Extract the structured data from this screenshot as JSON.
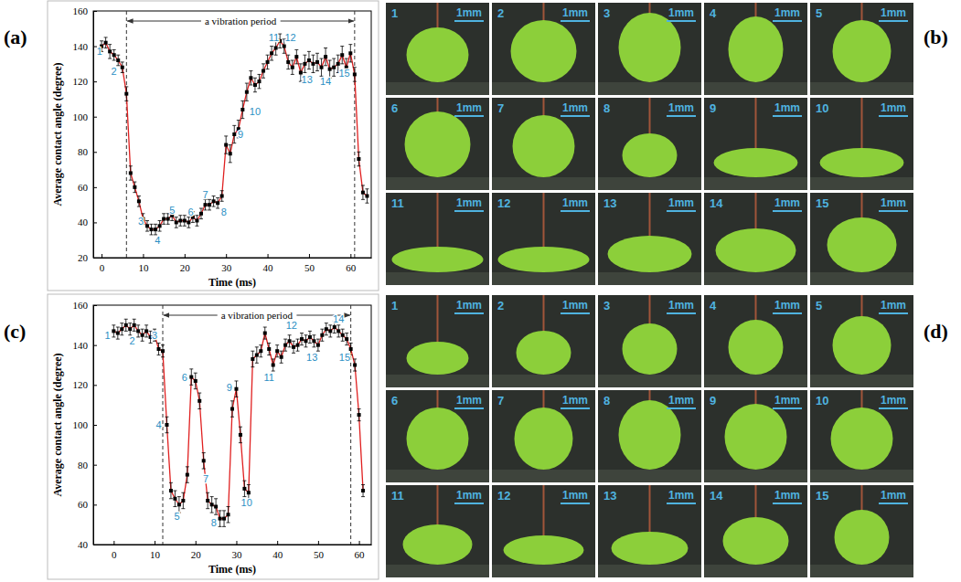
{
  "figure_labels": [
    "(a)",
    "(b)",
    "(c)",
    "(d)"
  ],
  "chart_data": [
    {
      "type": "line",
      "x_label": "Time (ms)",
      "y_label": "Average contact angle (degree)",
      "xlim": [
        -2,
        65
      ],
      "xticks": [
        0,
        10,
        20,
        30,
        40,
        50,
        60
      ],
      "ylim": [
        20,
        160
      ],
      "yticks": [
        20,
        40,
        60,
        80,
        100,
        120,
        140,
        160
      ],
      "grid": false,
      "x": [
        0,
        1,
        2,
        3,
        4,
        5,
        6,
        7,
        8,
        9,
        10,
        11,
        12,
        13,
        14,
        15,
        16,
        17,
        18,
        19,
        20,
        21,
        22,
        23,
        24,
        25,
        26,
        27,
        28,
        29,
        30,
        31,
        32,
        33,
        34,
        35,
        36,
        37,
        38,
        39,
        40,
        41,
        42,
        43,
        44,
        45,
        46,
        47,
        48,
        49,
        50,
        51,
        52,
        53,
        54,
        55,
        56,
        57,
        58,
        59,
        60,
        61,
        62,
        63,
        64
      ],
      "series": [
        {
          "color": "#e02020",
          "marker": "square",
          "line_style": "solid",
          "values": [
            140,
            142,
            137,
            135,
            132,
            128,
            113,
            68,
            60,
            52,
            42,
            38,
            36,
            36,
            38,
            42,
            42,
            44,
            40,
            41,
            41,
            40,
            43,
            41,
            45,
            50,
            50,
            52,
            51,
            55,
            84,
            79,
            90,
            93,
            104,
            114,
            122,
            118,
            120,
            126,
            131,
            136,
            139,
            143,
            140,
            131,
            128,
            134,
            125,
            130,
            132,
            130,
            131,
            128,
            134,
            127,
            128,
            130,
            135,
            128,
            136,
            124,
            76,
            57,
            55
          ],
          "errors": [
            3,
            3,
            4,
            3,
            3,
            3,
            4,
            4,
            3,
            3,
            3,
            3,
            3,
            3,
            3,
            3,
            3,
            3,
            3,
            3,
            3,
            3,
            3,
            3,
            3,
            3,
            3,
            3,
            3,
            3,
            5,
            5,
            5,
            5,
            5,
            5,
            4,
            4,
            4,
            4,
            4,
            4,
            4,
            4,
            4,
            4,
            4,
            4,
            5,
            5,
            5,
            5,
            5,
            5,
            5,
            5,
            5,
            5,
            5,
            5,
            5,
            4,
            4,
            4,
            4
          ]
        }
      ],
      "period": {
        "text": "a vibration period",
        "x_start": 6,
        "x_end": 61
      },
      "annotations": [
        {
          "text": "1",
          "x": -0.5,
          "y": 137
        },
        {
          "text": "2",
          "x": 3,
          "y": 126
        },
        {
          "text": "3",
          "x": 9.5,
          "y": 41
        },
        {
          "text": "4",
          "x": 13.5,
          "y": 30
        },
        {
          "text": "5",
          "x": 17,
          "y": 47
        },
        {
          "text": "6",
          "x": 21.5,
          "y": 46
        },
        {
          "text": "7",
          "x": 25,
          "y": 56
        },
        {
          "text": "8",
          "x": 29.5,
          "y": 46
        },
        {
          "text": "9",
          "x": 33.5,
          "y": 90
        },
        {
          "text": "10",
          "x": 37,
          "y": 103
        },
        {
          "text": "11",
          "x": 41.5,
          "y": 145
        },
        {
          "text": "12",
          "x": 45.5,
          "y": 145
        },
        {
          "text": "13",
          "x": 49.5,
          "y": 121
        },
        {
          "text": "14",
          "x": 54,
          "y": 120
        },
        {
          "text": "15",
          "x": 58.5,
          "y": 125
        }
      ]
    },
    {
      "type": "line",
      "x_label": "Time (ms)",
      "y_label": "Average contact angle (degree)",
      "xlim": [
        -5,
        63
      ],
      "xticks": [
        0,
        10,
        20,
        30,
        40,
        50,
        60
      ],
      "ylim": [
        40,
        160
      ],
      "yticks": [
        40,
        60,
        80,
        100,
        120,
        140,
        160
      ],
      "grid": false,
      "x": [
        0,
        1,
        2,
        3,
        4,
        5,
        6,
        7,
        8,
        9,
        10,
        11,
        12,
        13,
        14,
        15,
        16,
        17,
        18,
        19,
        20,
        21,
        22,
        23,
        24,
        25,
        26,
        27,
        28,
        29,
        30,
        31,
        32,
        33,
        34,
        35,
        36,
        37,
        38,
        39,
        40,
        41,
        42,
        43,
        44,
        45,
        46,
        47,
        48,
        49,
        50,
        51,
        52,
        53,
        54,
        55,
        56,
        57,
        58,
        59,
        60,
        61
      ],
      "series": [
        {
          "color": "#e02020",
          "marker": "square",
          "line_style": "solid",
          "values": [
            147,
            146,
            148,
            150,
            148,
            150,
            147,
            145,
            147,
            144,
            145,
            138,
            137,
            100,
            67,
            63,
            60,
            62,
            75,
            124,
            122,
            112,
            82,
            62,
            60,
            59,
            53,
            53,
            55,
            108,
            118,
            95,
            68,
            66,
            133,
            135,
            137,
            146,
            138,
            130,
            137,
            134,
            140,
            142,
            139,
            140,
            143,
            142,
            144,
            142,
            140,
            145,
            148,
            147,
            149,
            147,
            145,
            143,
            138,
            130,
            105,
            67
          ],
          "errors": [
            3,
            3,
            3,
            3,
            3,
            3,
            3,
            3,
            3,
            3,
            3,
            3,
            3,
            4,
            4,
            4,
            4,
            4,
            4,
            4,
            4,
            4,
            4,
            4,
            4,
            4,
            4,
            4,
            4,
            4,
            4,
            4,
            4,
            4,
            4,
            4,
            3,
            3,
            3,
            3,
            3,
            3,
            3,
            3,
            3,
            3,
            3,
            3,
            3,
            3,
            3,
            3,
            3,
            3,
            3,
            3,
            3,
            3,
            3,
            3,
            3,
            3
          ]
        }
      ],
      "period": {
        "text": "a vibration period",
        "x_start": 12,
        "x_end": 58
      },
      "annotations": [
        {
          "text": "1",
          "x": -1.5,
          "y": 145
        },
        {
          "text": "2",
          "x": 4.5,
          "y": 142
        },
        {
          "text": "3",
          "x": 10,
          "y": 145
        },
        {
          "text": "4",
          "x": 11,
          "y": 100
        },
        {
          "text": "5",
          "x": 15.5,
          "y": 54
        },
        {
          "text": "6",
          "x": 17.3,
          "y": 124
        },
        {
          "text": "7",
          "x": 22.5,
          "y": 73
        },
        {
          "text": "8",
          "x": 24.5,
          "y": 51
        },
        {
          "text": "9",
          "x": 28.3,
          "y": 119
        },
        {
          "text": "10",
          "x": 32.5,
          "y": 61
        },
        {
          "text": "11",
          "x": 38,
          "y": 124
        },
        {
          "text": "12",
          "x": 43.5,
          "y": 150
        },
        {
          "text": "13",
          "x": 48.5,
          "y": 134
        },
        {
          "text": "14",
          "x": 55,
          "y": 153
        },
        {
          "text": "15",
          "x": 56.5,
          "y": 134
        }
      ]
    }
  ],
  "image_panels": [
    {
      "frames": [
        "1",
        "2",
        "3",
        "4",
        "5",
        "6",
        "7",
        "8",
        "9",
        "10",
        "11",
        "12",
        "13",
        "14",
        "15"
      ],
      "scale_bar": "1mm"
    },
    {
      "frames": [
        "1",
        "2",
        "3",
        "4",
        "5",
        "6",
        "7",
        "8",
        "9",
        "10",
        "11",
        "12",
        "13",
        "14",
        "15"
      ],
      "scale_bar": "1mm"
    }
  ]
}
